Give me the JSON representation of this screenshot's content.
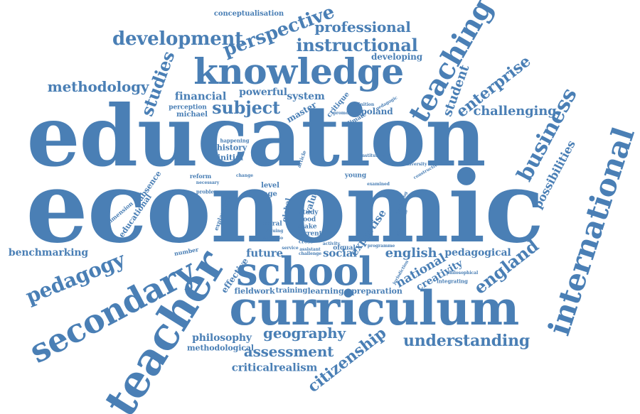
{
  "accent_color": "#4a7fb5",
  "words": [
    "education",
    "economic",
    "curriculum",
    "school",
    "knowledge",
    "teacher",
    "secondary",
    "international",
    "teaching",
    "business",
    "pedagogy",
    "subject",
    "development",
    "perspective",
    "instructional",
    "professional",
    "methodology",
    "studies",
    "enterprise",
    "student",
    "challenging",
    "possibilities",
    "england",
    "geography",
    "understanding",
    "citizenship",
    "assessment",
    "criticalrealism",
    "philosophy",
    "methodological",
    "benchmarking",
    "english",
    "pedagogical",
    "national",
    "creativity",
    "social",
    "future",
    "expertise",
    "fieldwork",
    "training",
    "learning",
    "preparation",
    "financial",
    "powerful",
    "system",
    "master",
    "critique",
    "poland",
    "developing",
    "conceptualisation",
    "perception",
    "michael",
    "history",
    "initial",
    "reform",
    "change",
    "educational",
    "absence",
    "dimension",
    "level",
    "age",
    "global",
    "value",
    "study",
    "good",
    "make",
    "current",
    "moral",
    "valuing",
    "effective",
    "number",
    "happening",
    "climate",
    "promoting",
    "young",
    "ofqual",
    "integrating",
    "philosophical",
    "jurisdiction",
    "programme",
    "assistant",
    "challenge",
    "activity",
    "necessary",
    "problem",
    "scenario",
    "cross",
    "explanation",
    "definition",
    "pedagogic",
    "service",
    "examined",
    "beginning",
    "appropriate",
    "constructivist",
    "university",
    "institution",
    "article"
  ]
}
